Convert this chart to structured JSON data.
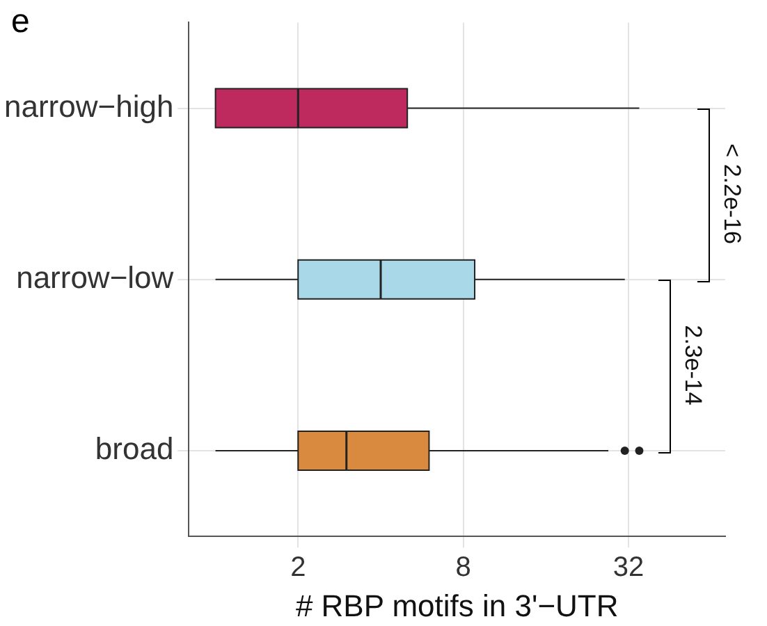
{
  "chart_data": {
    "type": "box",
    "orientation": "horizontal",
    "title": "e",
    "xlabel": "# RBP motifs in 3'−UTR",
    "categories": [
      "narrow−high",
      "narrow−low",
      "broad"
    ],
    "colors": [
      "#be2a5e",
      "#a9d9e8",
      "#d98a3e"
    ],
    "boxes": [
      {
        "low": 1,
        "q1": 1,
        "median": 2,
        "q3": 5,
        "high": 35
      },
      {
        "low": 1,
        "q1": 2,
        "median": 4,
        "q3": 8.8,
        "high": 31
      },
      {
        "low": 1,
        "q1": 2,
        "median": 3,
        "q3": 6,
        "high": 27,
        "outliers": [
          31,
          35
        ]
      }
    ],
    "log": "x",
    "xlim": [
      0.8,
      72
    ],
    "xticks": [
      2,
      8,
      32
    ],
    "grid": true,
    "annotations": [
      "< 2.2e-16",
      "2.3e-14"
    ]
  }
}
